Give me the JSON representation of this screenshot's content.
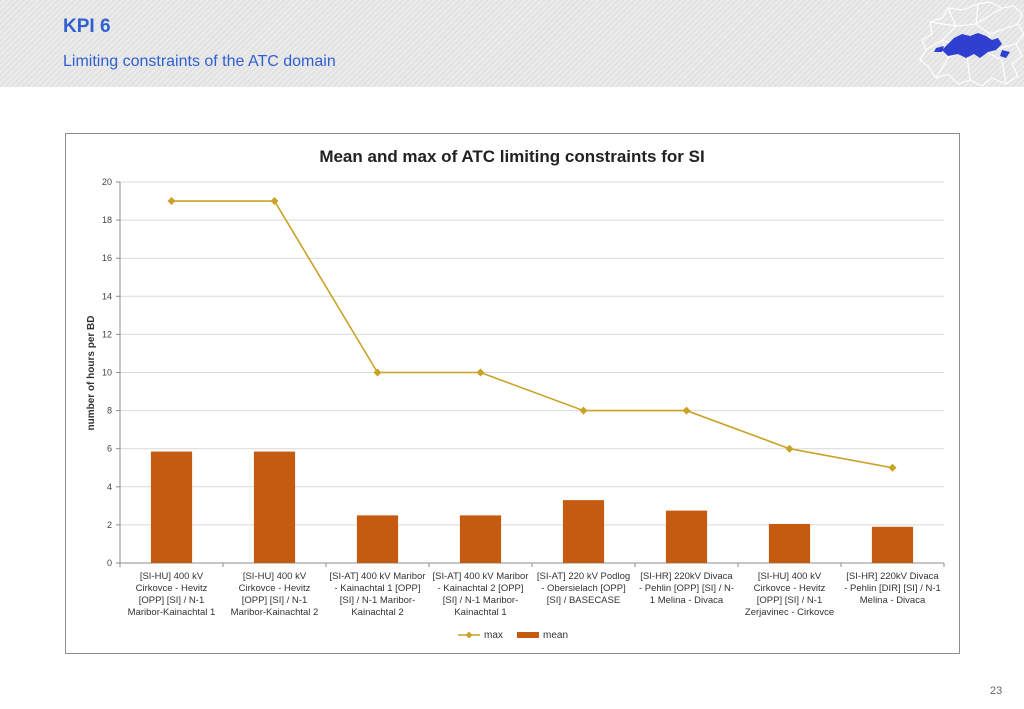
{
  "header": {
    "title": "KPI 6",
    "subtitle": "Limiting constraints of the ATC domain"
  },
  "page_number": "23",
  "colors": {
    "accent": "#2f5fd0",
    "max_line": "#c9a227",
    "mean_bar": "#c55a11",
    "grid": "#d9d9d9"
  },
  "chart_data": {
    "type": "bar",
    "title": "Mean and max of ATC limiting constraints for SI",
    "xlabel": "",
    "ylabel": "number of hours per BD",
    "ylim": [
      0,
      20
    ],
    "yticks": [
      0,
      2,
      4,
      6,
      8,
      10,
      12,
      14,
      16,
      18,
      20
    ],
    "grid": true,
    "legend_position": "bottom",
    "categories": [
      [
        "[SI-HU] 400 kV",
        "Cirkovce - Hevitz",
        "[OPP] [SI] / N-1",
        "Maribor-Kainachtal 1"
      ],
      [
        "[SI-HU] 400 kV",
        "Cirkovce - Hevitz",
        "[OPP] [SI] / N-1",
        "Maribor-Kainachtal 2"
      ],
      [
        "[SI-AT] 400 kV Maribor",
        "- Kainachtal 1 [OPP]",
        "[SI] / N-1 Maribor-",
        "Kainachtal 2"
      ],
      [
        "[SI-AT] 400 kV Maribor",
        "- Kainachtal 2 [OPP]",
        "[SI] / N-1 Maribor-",
        "Kainachtal 1"
      ],
      [
        "[SI-AT] 220 kV Podlog",
        "- Obersielach [OPP]",
        "[SI] / BASECASE"
      ],
      [
        "[SI-HR] 220kV Divaca",
        "- Pehlin [OPP] [SI] / N-",
        "1 Melina - Divaca"
      ],
      [
        "[SI-HU] 400 kV",
        "Cirkovce - Hevitz",
        "[OPP] [SI] / N-1",
        "Zerjavinec - Cirkovce"
      ],
      [
        "[SI-HR] 220kV Divaca",
        "- Pehlin [DIR] [SI] / N-1",
        "Melina - Divaca"
      ]
    ],
    "series": [
      {
        "name": "max",
        "type": "line",
        "values": [
          19,
          19,
          10,
          10,
          8,
          8,
          6,
          5
        ]
      },
      {
        "name": "mean",
        "type": "bar",
        "values": [
          5.85,
          5.85,
          2.5,
          2.5,
          3.3,
          2.75,
          2.05,
          1.9
        ]
      }
    ]
  }
}
